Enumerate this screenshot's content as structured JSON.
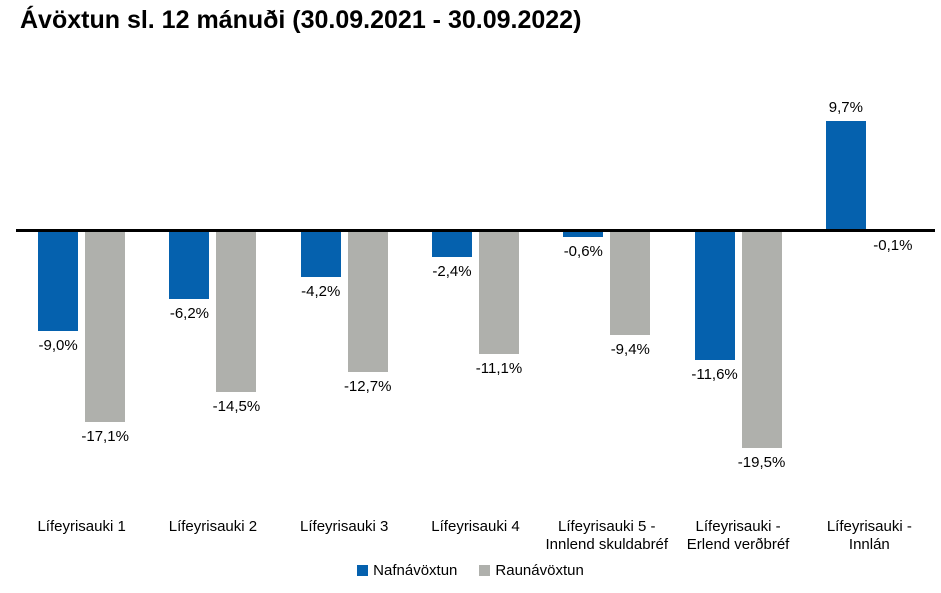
{
  "chart_data": {
    "type": "bar",
    "title": "Ávöxtun sl. 12 mánuði (30.09.2021 - 30.09.2022)",
    "xlabel": "",
    "ylabel": "",
    "ylim": [
      -22,
      12
    ],
    "grid": false,
    "legend_position": "bottom",
    "axis_color": "#000000",
    "background_color": "#ffffff",
    "value_label_decimal_separator": ",",
    "categories": [
      [
        "Lífeyrisauki 1"
      ],
      [
        "Lífeyrisauki 2"
      ],
      [
        "Lífeyrisauki 3"
      ],
      [
        "Lífeyrisauki 4"
      ],
      [
        "Lífeyrisauki 5 -",
        "Innlend skuldabréf"
      ],
      [
        "Lífeyrisauki  -",
        "Erlend verðbréf"
      ],
      [
        "Lífeyrisauki -",
        "Innlán"
      ]
    ],
    "series": [
      {
        "name": "Nafnávöxtun",
        "color": "#0561AE",
        "values": [
          -9.0,
          -6.2,
          -4.2,
          -2.4,
          -0.6,
          -11.6,
          9.7
        ],
        "labels": [
          "-9,0%",
          "-6,2%",
          "-4,2%",
          "-2,4%",
          "-0,6%",
          "-11,6%",
          "9,7%"
        ]
      },
      {
        "name": "Raunávöxtun",
        "color": "#AFB0AC",
        "values": [
          -17.1,
          -14.5,
          -12.7,
          -11.1,
          -9.4,
          -19.5,
          -0.1
        ],
        "labels": [
          "-17,1%",
          "-14,5%",
          "-12,7%",
          "-11,1%",
          "-9,4%",
          "-19,5%",
          "-0,1%"
        ]
      }
    ]
  }
}
